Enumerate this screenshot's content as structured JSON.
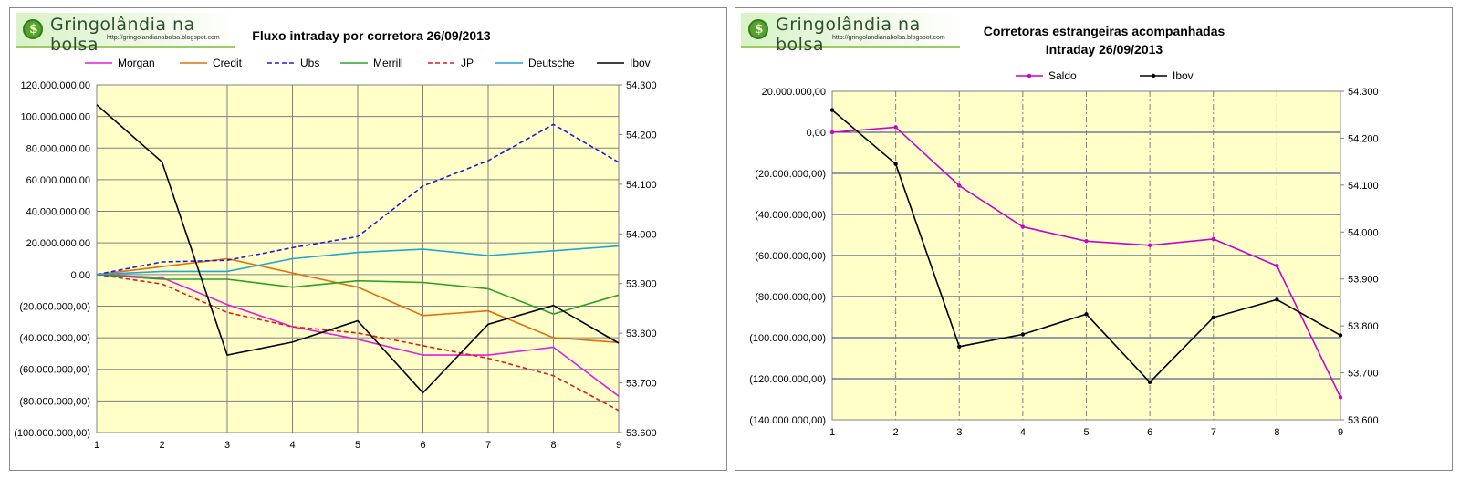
{
  "logo": {
    "title": "Gringolândia na bolsa",
    "url": "http://gringolandianabolsa.blogspot.com"
  },
  "chart_data": [
    {
      "type": "line",
      "title": "Fluxo intraday por corretora  26/09/2013",
      "x": [
        1,
        2,
        3,
        4,
        5,
        6,
        7,
        8,
        9
      ],
      "ylim": [
        -100000000,
        120000000
      ],
      "y_ticks": [
        "120.000.000,00",
        "100.000.000,00",
        "80.000.000,00",
        "60.000.000,00",
        "40.000.000,00",
        "20.000.000,00",
        "0,00",
        "(20.000.000,00)",
        "(40.000.000,00)",
        "(60.000.000,00)",
        "(80.000.000,00)",
        "(100.000.000,00)"
      ],
      "y2lim": [
        53600,
        54300
      ],
      "y2_ticks": [
        "54.300",
        "54.200",
        "54.100",
        "54.000",
        "53.900",
        "53.800",
        "53.700",
        "53.600"
      ],
      "grid": true,
      "legend_position": "top",
      "series": [
        {
          "name": "Morgan",
          "color": "#e11ee1",
          "dash": false,
          "axis": "left",
          "values": [
            0,
            -2000000,
            -19000000,
            -33000000,
            -41000000,
            -51000000,
            -51000000,
            -46000000,
            -77000000
          ]
        },
        {
          "name": "Credit",
          "color": "#e46c0a",
          "dash": false,
          "axis": "left",
          "values": [
            0,
            5000000,
            10000000,
            1000000,
            -8000000,
            -26000000,
            -23000000,
            -40000000,
            -43000000
          ]
        },
        {
          "name": "Ubs",
          "color": "#1f1fd6",
          "dash": true,
          "axis": "left",
          "values": [
            0,
            8000000,
            9000000,
            17000000,
            24000000,
            56000000,
            72000000,
            95000000,
            71000000
          ]
        },
        {
          "name": "Merrill",
          "color": "#2ca02c",
          "dash": false,
          "axis": "left",
          "values": [
            0,
            -3000000,
            -3000000,
            -8000000,
            -4000000,
            -5000000,
            -9000000,
            -25000000,
            -13000000
          ]
        },
        {
          "name": "JP",
          "color": "#e31a1c",
          "dash": true,
          "axis": "left",
          "values": [
            0,
            -6000000,
            -24000000,
            -33000000,
            -37000000,
            -45000000,
            -53000000,
            -64000000,
            -86000000
          ]
        },
        {
          "name": "Deutsche",
          "color": "#1fa6d6",
          "dash": false,
          "axis": "left",
          "values": [
            0,
            2000000,
            2000000,
            10000000,
            14000000,
            16000000,
            12000000,
            15000000,
            18000000
          ]
        },
        {
          "name": "Ibov",
          "color": "#000000",
          "dash": false,
          "axis": "right",
          "values": [
            54260,
            54145,
            53756,
            53782,
            53825,
            53680,
            53818,
            53856,
            53780
          ]
        }
      ]
    },
    {
      "type": "line",
      "title": "Corretoras estrangeiras acompanhadas",
      "subtitle": "Intraday  26/09/2013",
      "x": [
        1,
        2,
        3,
        4,
        5,
        6,
        7,
        8,
        9
      ],
      "ylim": [
        -140000000,
        20000000
      ],
      "y_ticks": [
        "20.000.000,00",
        "0,00",
        "(20.000.000,00)",
        "(40.000.000,00)",
        "(60.000.000,00)",
        "(80.000.000,00)",
        "(100.000.000,00)",
        "(120.000.000,00)",
        "(140.000.000,00)"
      ],
      "y2lim": [
        53600,
        54300
      ],
      "y2_ticks": [
        "54.300",
        "54.200",
        "54.100",
        "54.000",
        "53.900",
        "53.800",
        "53.700",
        "53.600"
      ],
      "grid": true,
      "legend_position": "top",
      "series": [
        {
          "name": "Saldo",
          "color": "#cc00cc",
          "dash": false,
          "axis": "left",
          "values": [
            0,
            2500000,
            -26000000,
            -46000000,
            -53000000,
            -55000000,
            -52000000,
            -65000000,
            -129000000
          ]
        },
        {
          "name": "Ibov",
          "color": "#000000",
          "dash": false,
          "axis": "right",
          "values": [
            54260,
            54145,
            53756,
            53782,
            53825,
            53680,
            53818,
            53856,
            53780
          ]
        }
      ]
    }
  ]
}
